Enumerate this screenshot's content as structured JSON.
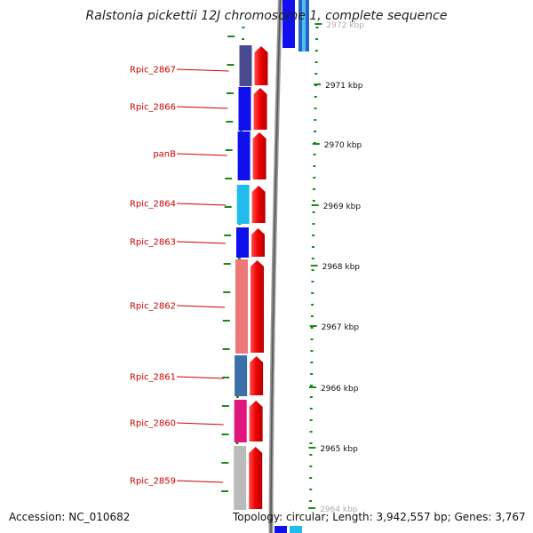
{
  "title": "Ralstonia pickettii 12J chromosome 1, complete sequence",
  "footer": {
    "accession": "Accession: NC_010682",
    "topology": "Topology: circular; Length: 3,942,557 bp; Genes: 3,767"
  },
  "genes": [
    {
      "name": "Rpic_2867",
      "color": "#4a4a90"
    },
    {
      "name": "Rpic_2866",
      "color": "#1010ee"
    },
    {
      "name": "panB",
      "color": "#1010ee"
    },
    {
      "name": "Rpic_2864",
      "color": "#22bbee"
    },
    {
      "name": "Rpic_2863",
      "color": "#1010ee"
    },
    {
      "name": "Rpic_2862",
      "color": "#ee7777"
    },
    {
      "name": "Rpic_2861",
      "color": "#3a6fa8"
    },
    {
      "name": "Rpic_2860",
      "color": "#e0157d"
    },
    {
      "name": "Rpic_2859",
      "color": "#bbbbbb"
    }
  ],
  "scale_labels": [
    "2972 kbp",
    "2971 kbp",
    "2970 kbp",
    "2969 kbp",
    "2968 kbp",
    "2967 kbp",
    "2966 kbp",
    "2965 kbp",
    "2964 kbp"
  ],
  "colors": {
    "strand_arrow": "#ee0000",
    "gene_label": "#cc0000",
    "tick": "#1a8a1a",
    "backbone": "#888888"
  }
}
